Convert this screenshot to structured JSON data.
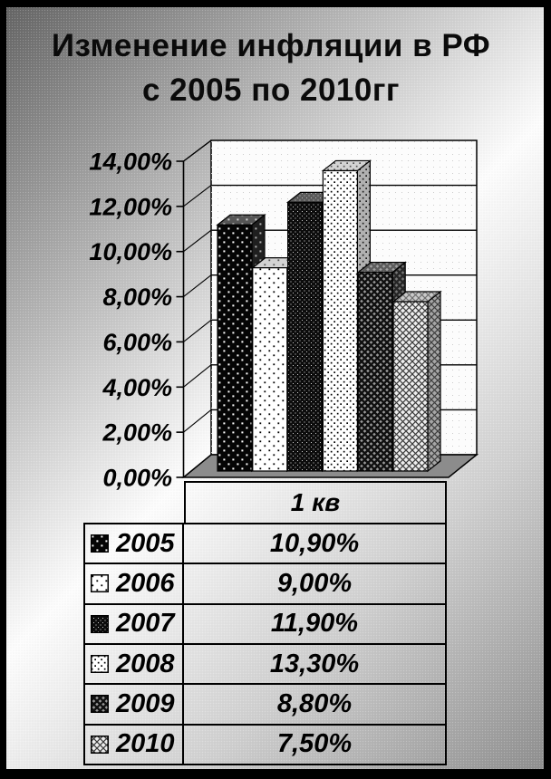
{
  "title": {
    "line1": "Изменение инфляции в РФ",
    "line2": "с 2005 по 2010гг"
  },
  "chart_data": {
    "type": "bar",
    "style": "3d-column",
    "title": "Изменение инфляции в РФ с 2005 по 2010гг",
    "categories": [
      "1 кв"
    ],
    "series": [
      {
        "name": "2005",
        "values": [
          10.9
        ],
        "label": "10,90%",
        "pattern": "black-with-white-dots"
      },
      {
        "name": "2006",
        "values": [
          9.0
        ],
        "label": "9,00%",
        "pattern": "white-with-black-dots"
      },
      {
        "name": "2007",
        "values": [
          11.9
        ],
        "label": "11,90%",
        "pattern": "dense-black-speckle"
      },
      {
        "name": "2008",
        "values": [
          13.3
        ],
        "label": "13,30%",
        "pattern": "light-dot-grid"
      },
      {
        "name": "2009",
        "values": [
          8.8
        ],
        "label": "8,80%",
        "pattern": "dark-crosshatch"
      },
      {
        "name": "2010",
        "values": [
          7.5
        ],
        "label": "7,50%",
        "pattern": "light-crosshatch"
      }
    ],
    "xlabel": "",
    "ylabel": "",
    "ylim": [
      0,
      14
    ],
    "ytick_step": 2,
    "yticks": [
      "0,00%",
      "2,00%",
      "4,00%",
      "6,00%",
      "8,00%",
      "10,00%",
      "12,00%",
      "14,00%"
    ],
    "grid": true,
    "legend_position": "table-below-chart"
  },
  "legend_table": {
    "category_header": "1 кв",
    "rows": [
      {
        "year": "2005",
        "value": "10,90%"
      },
      {
        "year": "2006",
        "value": "9,00%"
      },
      {
        "year": "2007",
        "value": "11,90%"
      },
      {
        "year": "2008",
        "value": "13,30%"
      },
      {
        "year": "2009",
        "value": "8,80%"
      },
      {
        "year": "2010",
        "value": "7,50%"
      }
    ]
  },
  "colors": {
    "frame_border": "#000000",
    "background_gradient": [
      "#656565",
      "#fdfdfd",
      "#8f8f8f"
    ],
    "chart_wall": "#fcfcfc",
    "chart_floor": "#8c8c8c",
    "text": "#000000"
  }
}
